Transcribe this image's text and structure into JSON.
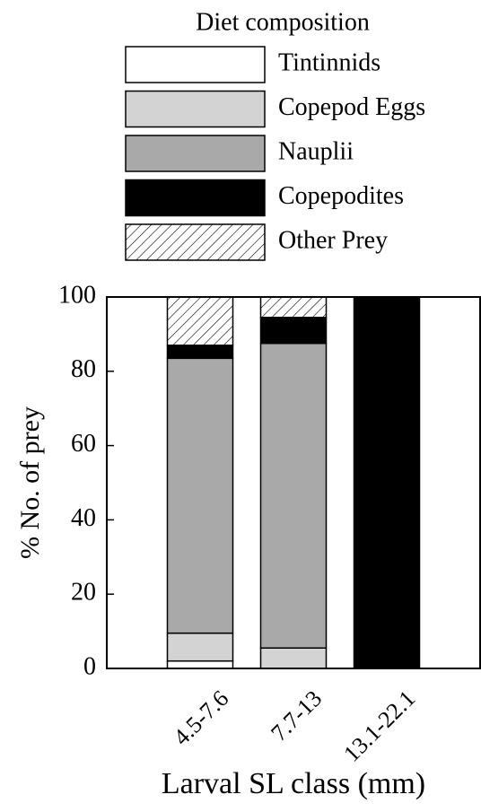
{
  "chart_data": {
    "type": "stacked-bar",
    "legend_title": "Diet composition",
    "x_label": "Larval SL class (mm)",
    "y_label": "% No. of prey",
    "categories": [
      "4.5-7.6",
      "7.7-13",
      "13.1-22.1"
    ],
    "series": [
      {
        "name": "Tintinnids",
        "color": "#ffffff",
        "values": [
          2,
          0,
          0
        ]
      },
      {
        "name": "Copepod Eggs",
        "color": "#d3d3d3",
        "values": [
          7.5,
          5.5,
          0
        ]
      },
      {
        "name": "Nauplii",
        "color": "#a9a9a9",
        "values": [
          74,
          82,
          0
        ]
      },
      {
        "name": "Copepodites",
        "color": "#000000",
        "values": [
          3.5,
          7,
          100
        ]
      },
      {
        "name": "Other Prey",
        "color": "#ffffff",
        "pattern": "diagonal-hatch",
        "values": [
          13,
          5.5,
          0
        ]
      }
    ],
    "ylim": [
      0,
      100
    ],
    "yticks": [
      0,
      20,
      40,
      60,
      80,
      100
    ],
    "legend": "top"
  }
}
